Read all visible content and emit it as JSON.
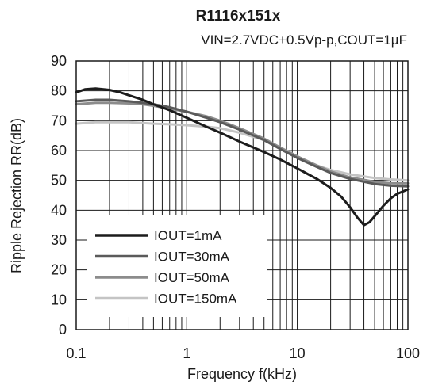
{
  "chart_data": {
    "type": "line",
    "title": "R1116x151x",
    "subtitle": "VIN=2.7VDC+0.5Vp-p,COUT=1µF",
    "xlabel": "Frequency f(kHz)",
    "ylabel": "Ripple Rejection RR(dB)",
    "x_scale": "log",
    "xlim": [
      0.1,
      100
    ],
    "ylim": [
      0,
      90
    ],
    "x_ticks": [
      "0.1",
      "1",
      "10",
      "100"
    ],
    "y_ticks": [
      "0",
      "10",
      "20",
      "30",
      "40",
      "50",
      "60",
      "70",
      "80",
      "90"
    ],
    "grid": true,
    "legend_position": "bottom-left",
    "series": [
      {
        "name": "IOUT=1mA",
        "color": "#1c1c1c",
        "x": [
          0.1,
          0.12,
          0.15,
          0.2,
          0.25,
          0.3,
          0.4,
          0.5,
          0.7,
          1,
          1.5,
          2,
          3,
          5,
          7,
          10,
          15,
          20,
          25,
          30,
          35,
          40,
          45,
          50,
          60,
          70,
          80,
          100
        ],
        "y": [
          79.5,
          80.5,
          80.8,
          80.3,
          79.5,
          78.5,
          77,
          75.5,
          73.5,
          71,
          68,
          66,
          63,
          59.5,
          57,
          54,
          50.5,
          47.5,
          44.5,
          41,
          37.5,
          35,
          36,
          38,
          41.5,
          44,
          45.5,
          47
        ]
      },
      {
        "name": "IOUT=30mA",
        "color": "#5a5a5a",
        "x": [
          0.1,
          0.15,
          0.2,
          0.3,
          0.4,
          0.5,
          0.7,
          1,
          1.5,
          2,
          3,
          5,
          7,
          10,
          15,
          20,
          30,
          50,
          70,
          100
        ],
        "y": [
          76.5,
          77,
          77,
          76.5,
          76,
          75.5,
          74.5,
          73,
          71,
          69.5,
          67,
          63.5,
          60.5,
          57.5,
          54.5,
          52.5,
          50.5,
          48.8,
          48.2,
          48
        ]
      },
      {
        "name": "IOUT=50mA",
        "color": "#8c8c8c",
        "x": [
          0.1,
          0.15,
          0.2,
          0.3,
          0.4,
          0.5,
          0.7,
          1,
          1.5,
          2,
          3,
          5,
          7,
          10,
          15,
          20,
          30,
          50,
          70,
          100
        ],
        "y": [
          75.5,
          76,
          76,
          75.8,
          75.5,
          75,
          74,
          73,
          71.5,
          70,
          67.5,
          64,
          61,
          58,
          55,
          53,
          51,
          49.5,
          49,
          49
        ]
      },
      {
        "name": "IOUT=150mA",
        "color": "#c4c4c4",
        "x": [
          0.1,
          0.15,
          0.2,
          0.3,
          0.5,
          0.7,
          1,
          1.5,
          2,
          3,
          5,
          7,
          10,
          15,
          20,
          30,
          50,
          70,
          100
        ],
        "y": [
          69,
          69.5,
          69.5,
          69.5,
          69,
          68.8,
          68.5,
          68,
          67.5,
          66,
          63.5,
          61,
          58,
          55,
          53.5,
          52,
          50.8,
          50.3,
          50
        ]
      }
    ]
  }
}
